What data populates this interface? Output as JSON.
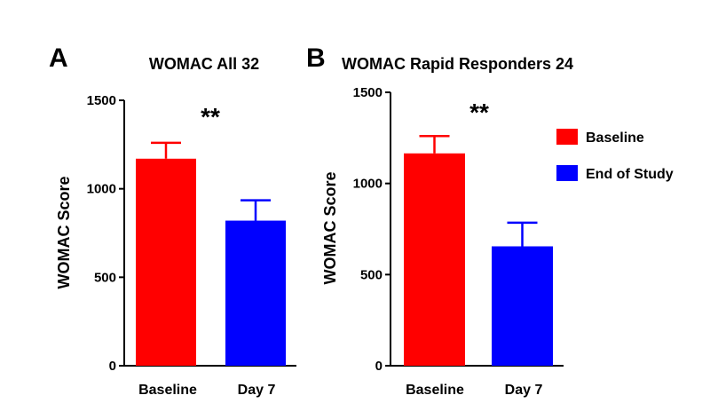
{
  "legend": {
    "items": [
      {
        "label": "Baseline",
        "color": "#ff0000"
      },
      {
        "label": "End of Study",
        "color": "#0000ff"
      }
    ]
  },
  "chart_data": [
    {
      "panel": "A",
      "type": "bar",
      "title": "WOMAC All 32",
      "ylabel": "WOMAC Score",
      "xlabel": "",
      "categories": [
        "Baseline",
        "Day 7"
      ],
      "values": [
        1170,
        820
      ],
      "error": [
        90,
        115
      ],
      "colors": [
        "#ff0000",
        "#0000ff"
      ],
      "ylim": [
        0,
        1500
      ],
      "yticks": [
        0,
        500,
        1000,
        1500
      ],
      "significance": "**",
      "grid": false
    },
    {
      "panel": "B",
      "type": "bar",
      "title": "WOMAC Rapid Responders 24",
      "ylabel": "WOMAC Score",
      "xlabel": "",
      "categories": [
        "Baseline",
        "Day 7"
      ],
      "values": [
        1165,
        655
      ],
      "error": [
        95,
        130
      ],
      "colors": [
        "#ff0000",
        "#0000ff"
      ],
      "ylim": [
        0,
        1500
      ],
      "yticks": [
        0,
        500,
        1000,
        1500
      ],
      "significance": "**",
      "grid": false
    }
  ]
}
